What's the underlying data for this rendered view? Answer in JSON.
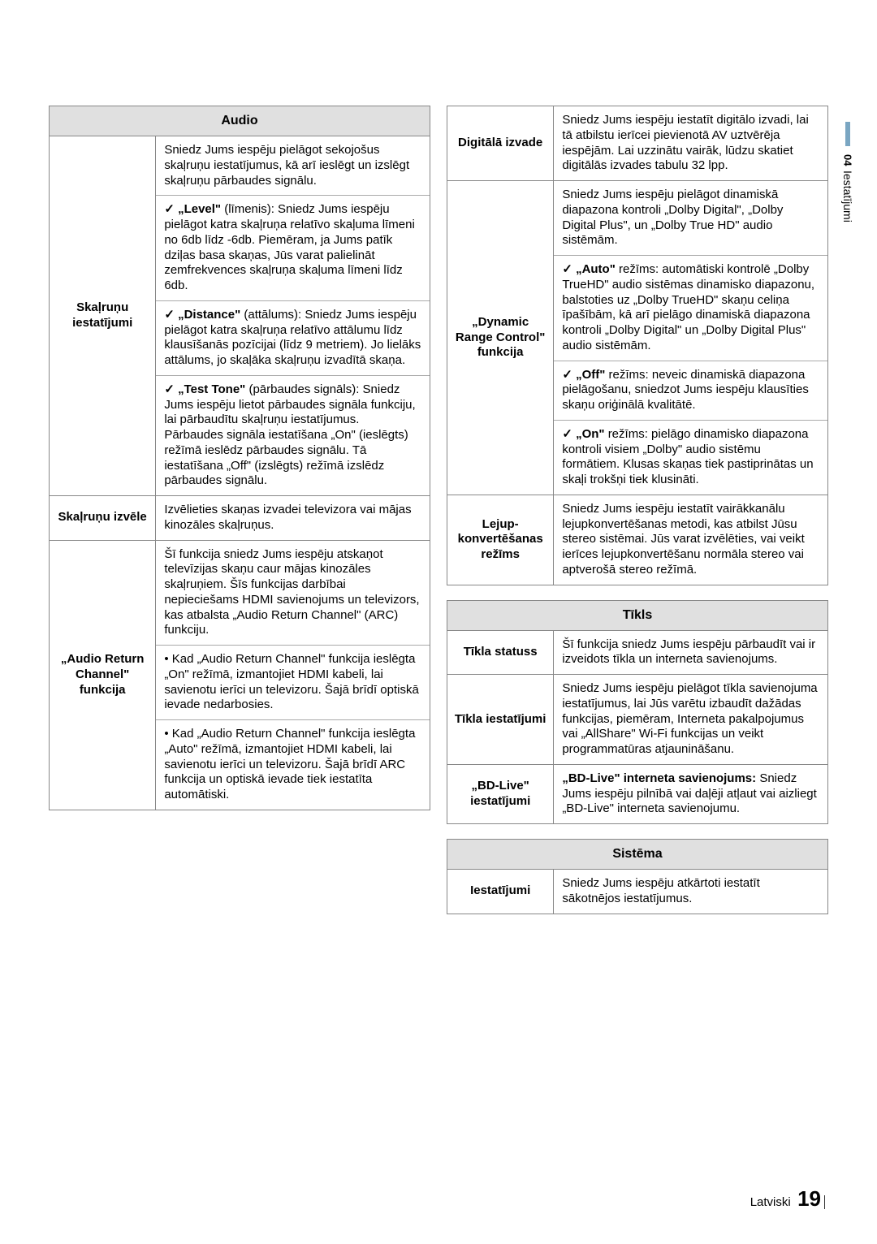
{
  "sideTab": {
    "num": "04",
    "txt": "Iestatījumi"
  },
  "footer": {
    "lang": "Latviski",
    "page": "19"
  },
  "left": {
    "audio": {
      "header": "Audio",
      "rows": [
        {
          "label": "Skaļruņu iestatījumi",
          "intro": "Sniedz Jums iespēju pielāgot sekojošus skaļruņu iestatījumus, kā arī ieslēgt un izslēgt skaļruņu pārbaudes signālu.",
          "items": [
            "„Level\" (līmenis): Sniedz Jums iespēju pielāgot katra skaļruņa relatīvo skaļuma līmeni no 6db līdz -6db. Piemēram, ja Jums patīk dziļas basa skaņas, Jūs varat palielināt zemfrekvences skaļruņa skaļuma līmeni līdz 6db.",
            "„Distance\" (attālums): Sniedz Jums iespēju pielāgot katra skaļruņa relatīvo attālumu līdz klausīšanās pozīcijai (līdz 9 metriem). Jo lielāks attālums, jo skaļāka skaļruņu izvadītā skaņa.",
            "„Test Tone\" (pārbaudes signāls): Sniedz Jums iespēju lietot pārbaudes signāla funkciju, lai pārbaudītu skaļruņu iestatījumus. Pārbaudes signāla iestatīšana „On\" (ieslēgts) režīmā ieslēdz pārbaudes signālu. Tā iestatīšana „Off\" (izslēgts) režīmā izslēdz pārbaudes signālu."
          ]
        },
        {
          "label": "Skaļruņu izvēle",
          "desc": "Izvēlieties skaņas izvadei televizora vai mājas kinozāles skaļruņus."
        },
        {
          "label": "„Audio Return Channel\" funkcija",
          "intro": "Šī funkcija sniedz Jums iespēju atskaņot televīzijas skaņu caur mājas kinozāles skaļruņiem. Šīs funkcijas darbībai nepieciešams HDMI savienojums un televizors, kas atbalsta „Audio Return Channel\" (ARC) funkciju.",
          "bullets": [
            "Kad „Audio Return Channel\" funkcija ieslēgta „On\" režīmā, izmantojiet HDMI kabeli, lai savienotu ierīci un televizoru. Šajā brīdī optiskā ievade nedarbosies.",
            "Kad „Audio Return Channel\" funkcija ieslēgta „Auto\" režīmā, izmantojiet HDMI kabeli, lai savienotu ierīci un televizoru. Šajā brīdī ARC funkcija un optiskā ievade tiek iestatīta automātiski."
          ]
        }
      ]
    }
  },
  "right": {
    "audioCont": {
      "rows": [
        {
          "label": "Digitālā izvade",
          "desc": "Sniedz Jums iespēju iestatīt digitālo izvadi, lai tā atbilstu ierīcei pievienotā AV uztvērēja iespējām. Lai uzzinātu vairāk, lūdzu skatiet digitālās izvades tabulu 32 lpp."
        },
        {
          "label": "„Dynamic Range Control\" funkcija",
          "intro": "Sniedz Jums iespēju pielāgot dinamiskā diapazona kontroli „Dolby Digital\", „Dolby Digital Plus\", un „Dolby True HD\" audio sistēmām.",
          "items": [
            "„Auto\" režīms: automātiski kontrolē „Dolby TrueHD\" audio sistēmas dinamisko diapazonu, balstoties uz „Dolby TrueHD\" skaņu celiņa īpašībām, kā arī pielāgo dinamiskā diapazona kontroli „Dolby Digital\" un „Dolby Digital Plus\" audio sistēmām.",
            "„Off\" režīms: neveic dinamiskā diapazona pielāgošanu, sniedzot Jums iespēju klausīties skaņu oriģinālā kvalitātē.",
            "„On\" režīms: pielāgo dinamisko diapazona kontroli visiem „Dolby\" audio sistēmu formātiem. Klusas skaņas tiek pastiprinātas un skaļi trokšņi tiek klusināti."
          ]
        },
        {
          "label": "Lejup-konvertēšanas režīms",
          "desc": "Sniedz Jums iespēju iestatīt vairākkanālu lejupkonvertēšanas metodi, kas atbilst Jūsu stereo sistēmai. Jūs varat izvēlēties, vai veikt ierīces lejupkonvertēšanu normāla stereo vai aptverošā stereo režīmā."
        }
      ]
    },
    "tikls": {
      "header": "Tīkls",
      "rows": [
        {
          "label": "Tīkla statuss",
          "desc": "Šī funkcija sniedz Jums iespēju pārbaudīt vai ir izveidots tīkla un interneta savienojums."
        },
        {
          "label": "Tīkla iestatījumi",
          "desc": "Sniedz Jums iespēju pielāgot tīkla savienojuma iestatījumus, lai Jūs varētu izbaudīt dažādas funkcijas, piemēram, Interneta pakalpojumus vai „AllShare\" Wi-Fi funkcijas un veikt programmatūras atjaunināšanu."
        },
        {
          "label": "„BD-Live\" iestatījumi",
          "descLead": "„BD-Live\" interneta savienojums:",
          "desc": "Sniedz Jums iespēju pilnībā vai daļēji atļaut vai aizliegt „BD-Live\" interneta savienojumu."
        }
      ]
    },
    "sistema": {
      "header": "Sistēma",
      "rows": [
        {
          "label": "Iestatījumi",
          "desc": "Sniedz Jums iespēju atkārtoti iestatīt sākotnējos iestatījumus."
        }
      ]
    }
  }
}
